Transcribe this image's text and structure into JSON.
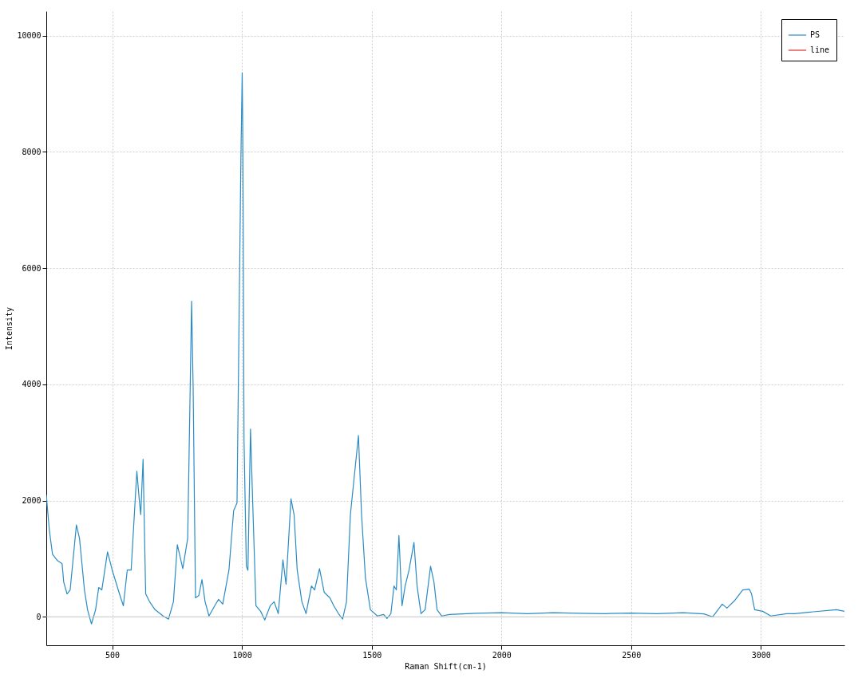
{
  "chart_data": {
    "type": "line",
    "xlabel": "Raman Shift(cm-1)",
    "ylabel": "Intensity",
    "xlim": [
      246,
      3322
    ],
    "ylim": [
      -490,
      10420
    ],
    "xticks": [
      500,
      1000,
      1500,
      2000,
      2500,
      3000
    ],
    "yticks": [
      0,
      2000,
      4000,
      6000,
      8000,
      10000
    ],
    "grid": true,
    "legend": "top right",
    "ref_lines": [
      {
        "axis": "y",
        "value": 0,
        "color": "#c8c8c8"
      }
    ],
    "series": [
      {
        "name": "PS",
        "color": "#2b8cc4",
        "x": [
          246,
          258,
          270,
          289,
          307,
          313,
          326,
          338,
          362,
          374,
          393,
          405,
          420,
          436,
          448,
          460,
          482,
          500,
          528,
          543,
          558,
          573,
          595,
          604,
          610,
          619,
          629,
          644,
          665,
          696,
          717,
          736,
          751,
          772,
          791,
          806,
          812,
          821,
          834,
          846,
          858,
          873,
          895,
          910,
          926,
          950,
          968,
          981,
          996,
          1001,
          1003,
          1005,
          1008,
          1017,
          1023,
          1033,
          1042,
          1054,
          1072,
          1088,
          1109,
          1124,
          1140,
          1158,
          1170,
          1189,
          1201,
          1213,
          1231,
          1247,
          1268,
          1280,
          1299,
          1317,
          1339,
          1354,
          1372,
          1388,
          1403,
          1418,
          1449,
          1461,
          1476,
          1495,
          1522,
          1546,
          1559,
          1574,
          1586,
          1595,
          1605,
          1617,
          1629,
          1644,
          1663,
          1675,
          1690,
          1706,
          1727,
          1740,
          1752,
          1770,
          1800,
          1900,
          2000,
          2100,
          2200,
          2300,
          2400,
          2500,
          2600,
          2700,
          2780,
          2814,
          2851,
          2869,
          2900,
          2930,
          2955,
          2964,
          2976,
          3007,
          3038,
          3099,
          3129,
          3190,
          3291,
          3322
        ],
        "values": [
          2100,
          1480,
          1075,
          967,
          912,
          600,
          395,
          463,
          1580,
          1350,
          463,
          123,
          -123,
          123,
          504,
          463,
          1117,
          804,
          395,
          190,
          804,
          804,
          2506,
          2030,
          1757,
          2710,
          395,
          260,
          123,
          14,
          -40,
          260,
          1240,
          830,
          1350,
          5430,
          3935,
          327,
          368,
          640,
          260,
          14,
          190,
          300,
          218,
          804,
          1825,
          1960,
          7886,
          9357,
          8470,
          6650,
          3050,
          870,
          800,
          3230,
          1890,
          190,
          95,
          -55,
          190,
          260,
          55,
          980,
          560,
          2030,
          1757,
          804,
          260,
          55,
          531,
          463,
          830,
          422,
          327,
          190,
          55,
          -40,
          260,
          1757,
          3120,
          1757,
          667,
          123,
          14,
          41,
          -27,
          55,
          531,
          463,
          1400,
          190,
          531,
          804,
          1280,
          531,
          55,
          123,
          870,
          600,
          123,
          14,
          40,
          60,
          70,
          55,
          70,
          60,
          55,
          65,
          55,
          70,
          50,
          0,
          218,
          150,
          286,
          463,
          477,
          395,
          123,
          95,
          14,
          55,
          55,
          82,
          123,
          95
        ]
      },
      {
        "name": "line",
        "color": "#e03030"
      }
    ]
  }
}
